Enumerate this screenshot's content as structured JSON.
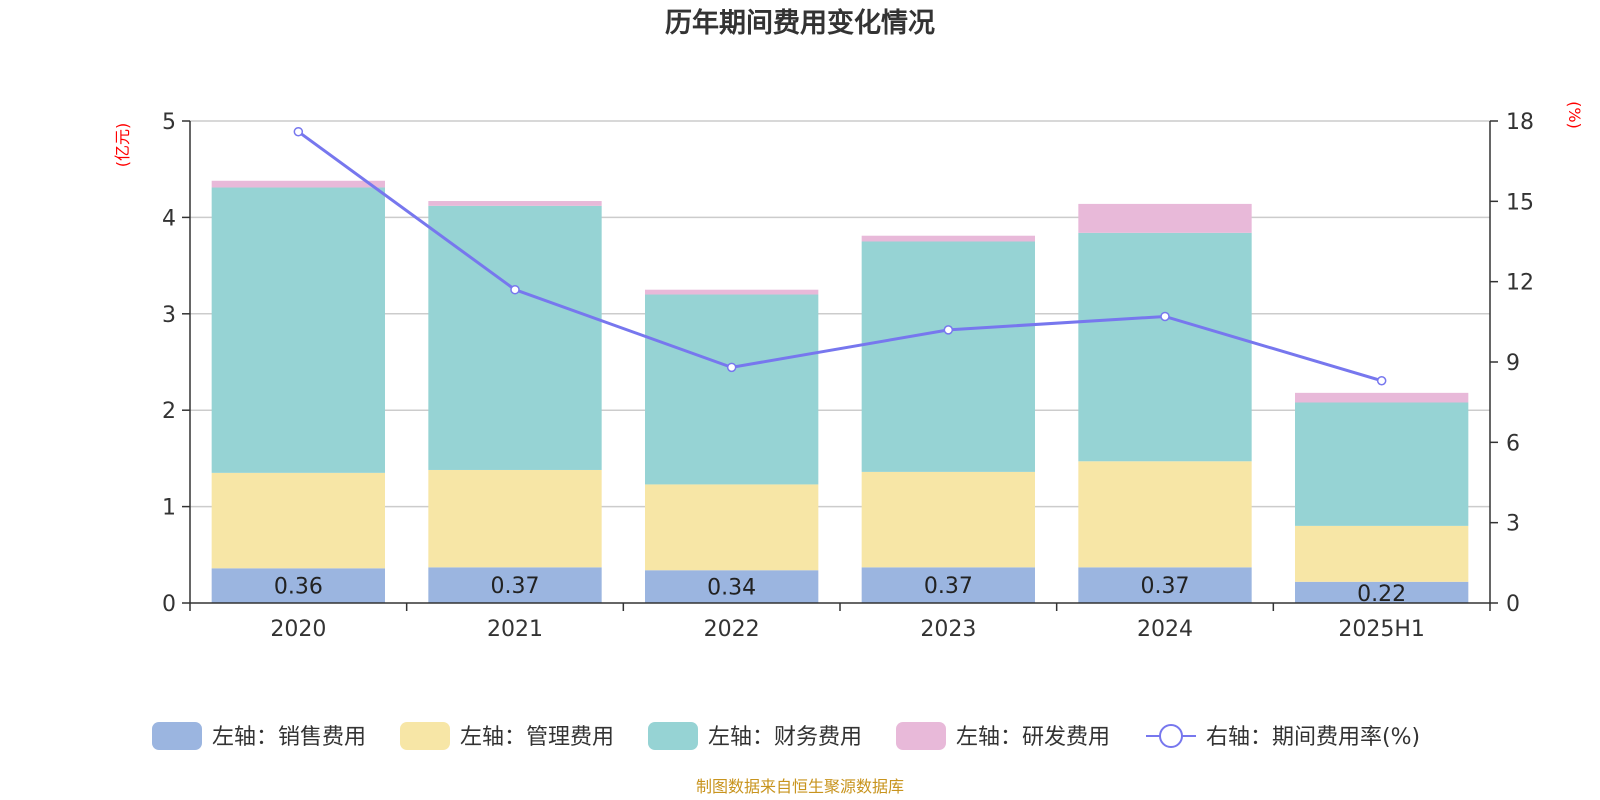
{
  "chart_data": {
    "type": "bar",
    "title": "历年期间费用变化情况",
    "left_axis_unit": "(亿元)",
    "right_axis_unit": "(%)",
    "categories": [
      "2020",
      "2021",
      "2022",
      "2023",
      "2024",
      "2025H1"
    ],
    "ylim_left": [
      0,
      5
    ],
    "yticks_left": [
      "0",
      "1",
      "2",
      "3",
      "4",
      "5"
    ],
    "ylim_right": [
      0,
      18
    ],
    "yticks_right": [
      "0",
      "3",
      "6",
      "9",
      "12",
      "15",
      "18"
    ],
    "grid": true,
    "stacked": true,
    "series": [
      {
        "name": "左轴：销售费用",
        "type": "bar",
        "axis": "left",
        "color": "#9bb5e0",
        "values": [
          0.36,
          0.37,
          0.34,
          0.37,
          0.37,
          0.22
        ],
        "labels": [
          "0.36",
          "0.37",
          "0.34",
          "0.37",
          "0.37",
          "0.22"
        ]
      },
      {
        "name": "左轴：管理费用",
        "type": "bar",
        "axis": "left",
        "color": "#f7e6a6",
        "values": [
          0.99,
          1.01,
          0.89,
          0.99,
          1.1,
          0.58
        ]
      },
      {
        "name": "左轴：财务费用",
        "type": "bar",
        "axis": "left",
        "color": "#96d3d4",
        "values": [
          2.96,
          2.74,
          1.97,
          2.39,
          2.37,
          1.28
        ]
      },
      {
        "name": "左轴：研发费用",
        "type": "bar",
        "axis": "left",
        "color": "#e8b9d9",
        "values": [
          0.07,
          0.05,
          0.05,
          0.06,
          0.3,
          0.1
        ]
      },
      {
        "name": "右轴：期间费用率(%)",
        "type": "line",
        "axis": "right",
        "color": "#7777ee",
        "values": [
          17.6,
          11.7,
          8.8,
          10.2,
          10.7,
          8.3
        ]
      }
    ],
    "legend_position": "bottom",
    "source": "制图数据来自恒生聚源数据库"
  }
}
